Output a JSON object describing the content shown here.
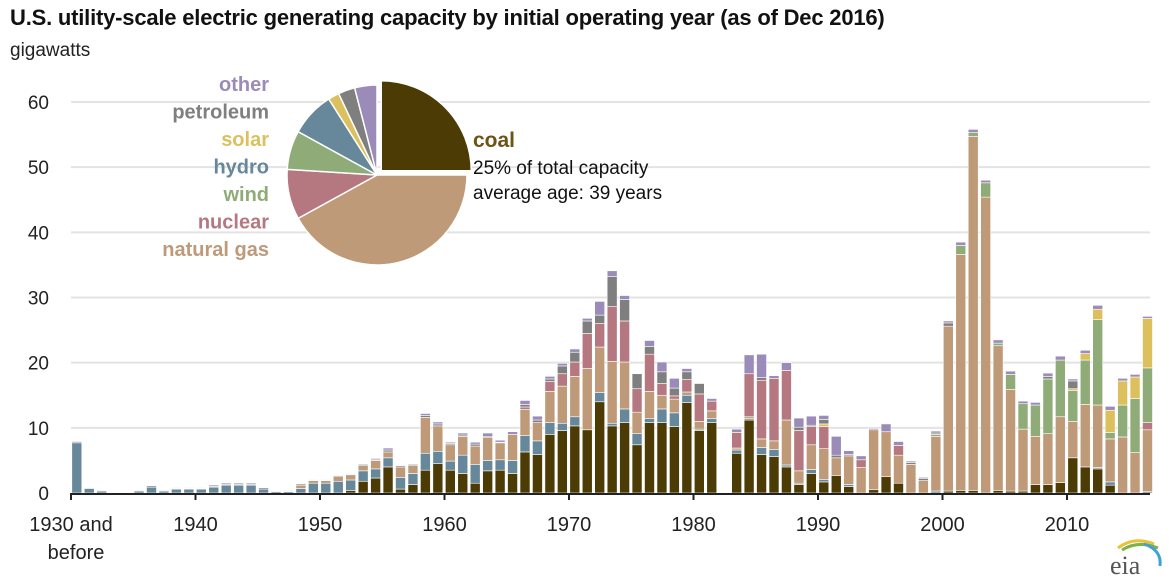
{
  "chart_data": {
    "type": "bar",
    "stacked": true,
    "title": "U.S. utility-scale electric generating capacity by initial operating year (as of Dec 2016)",
    "ylabel": "gigawatts",
    "xlabel": "",
    "ylim": [
      0,
      60
    ],
    "yticks": [
      0,
      10,
      20,
      30,
      40,
      50,
      60
    ],
    "xticks": [
      {
        "year": 1930,
        "label": "1930 and",
        "label2": "before"
      },
      {
        "year": 1940,
        "label": "1940"
      },
      {
        "year": 1950,
        "label": "1950"
      },
      {
        "year": 1960,
        "label": "1960"
      },
      {
        "year": 1970,
        "label": "1970"
      },
      {
        "year": 1980,
        "label": "1980"
      },
      {
        "year": 1990,
        "label": "1990"
      },
      {
        "year": 2000,
        "label": "2000"
      },
      {
        "year": 2010,
        "label": "2010"
      }
    ],
    "grid": true,
    "series_order": [
      "coal",
      "hydro",
      "natural gas",
      "nuclear",
      "wind",
      "solar",
      "petroleum",
      "other"
    ],
    "colors": {
      "coal": "#4d3b06",
      "hydro": "#66889a",
      "natural gas": "#bf9a78",
      "nuclear": "#b57880",
      "wind": "#8fac78",
      "solar": "#ddc05e",
      "petroleum": "#7f7f7f",
      "other": "#9b8bb8"
    },
    "years_start": 1930,
    "data": [
      [
        0,
        7.7,
        0,
        0,
        0,
        0,
        0,
        0.2
      ],
      [
        0,
        0.7,
        0,
        0,
        0,
        0,
        0.1,
        0
      ],
      [
        0,
        0.3,
        0,
        0,
        0,
        0,
        0.1,
        0
      ],
      [
        0,
        0,
        0,
        0,
        0,
        0,
        0,
        0
      ],
      [
        0,
        0,
        0,
        0,
        0,
        0,
        0,
        0
      ],
      [
        0,
        0.3,
        0,
        0,
        0,
        0,
        0.1,
        0
      ],
      [
        0,
        0.9,
        0,
        0,
        0,
        0,
        0.2,
        0
      ],
      [
        0,
        0.3,
        0,
        0,
        0,
        0,
        0.1,
        0
      ],
      [
        0,
        0.6,
        0.05,
        0,
        0,
        0,
        0.1,
        0.1
      ],
      [
        0,
        0.6,
        0.05,
        0,
        0,
        0,
        0.1,
        0.1
      ],
      [
        0,
        0.6,
        0.05,
        0,
        0,
        0,
        0.1,
        0.1
      ],
      [
        0,
        0.9,
        0.1,
        0,
        0,
        0,
        0.2,
        0
      ],
      [
        0,
        1.2,
        0.1,
        0,
        0,
        0,
        0.2,
        0
      ],
      [
        0,
        1.2,
        0.1,
        0,
        0,
        0,
        0.2,
        0
      ],
      [
        0,
        1.2,
        0.1,
        0,
        0,
        0,
        0.2,
        0
      ],
      [
        0,
        0.6,
        0,
        0,
        0,
        0,
        0.2,
        0
      ],
      [
        0,
        0.2,
        0,
        0,
        0,
        0,
        0.1,
        0
      ],
      [
        0,
        0.2,
        0,
        0,
        0,
        0,
        0.1,
        0.1
      ],
      [
        0,
        0.7,
        0.5,
        0,
        0,
        0,
        0.2,
        0.1
      ],
      [
        0,
        1.5,
        0.4,
        0,
        0,
        0,
        0.1,
        0.1
      ],
      [
        0,
        1.5,
        0.4,
        0,
        0,
        0,
        0.1,
        0.1
      ],
      [
        0,
        1.8,
        0.8,
        0,
        0,
        0,
        0.1,
        0.1
      ],
      [
        0.4,
        1.6,
        0.8,
        0,
        0,
        0,
        0.1,
        0.1
      ],
      [
        1.8,
        1.6,
        0.8,
        0,
        0,
        0,
        0.2,
        0.1
      ],
      [
        2.3,
        1.4,
        1.3,
        0,
        0,
        0,
        0.1,
        0.2
      ],
      [
        4.0,
        1.4,
        0.9,
        0,
        0,
        0,
        0.3,
        0.3
      ],
      [
        0.6,
        1.8,
        1.6,
        0,
        0,
        0,
        0.2,
        0.1
      ],
      [
        1.3,
        1.7,
        1.2,
        0,
        0,
        0,
        0.2,
        0.1
      ],
      [
        3.5,
        2.6,
        5.5,
        0,
        0,
        0,
        0.3,
        0.3
      ],
      [
        4.5,
        1.9,
        3.9,
        0,
        0,
        0,
        0.3,
        0.3
      ],
      [
        3.5,
        1.4,
        2.5,
        0,
        0,
        0,
        0.2,
        0.2
      ],
      [
        3.0,
        2.8,
        2.9,
        0,
        0,
        0,
        0.2,
        0.3
      ],
      [
        1.5,
        2.9,
        2.8,
        0,
        0,
        0,
        0.3,
        0.3
      ],
      [
        3.4,
        1.6,
        3.5,
        0,
        0,
        0,
        0.2,
        0.5
      ],
      [
        3.5,
        1.6,
        2.6,
        0,
        0,
        0,
        0.1,
        0.3
      ],
      [
        3.0,
        2.0,
        4.0,
        0,
        0,
        0,
        0,
        0.4
      ],
      [
        6.3,
        2.5,
        4.0,
        0.4,
        0,
        0,
        0.4,
        0.6
      ],
      [
        5.9,
        2.1,
        2.8,
        0,
        0,
        0,
        0.4,
        0.6
      ],
      [
        9.0,
        1.8,
        4.8,
        1.5,
        0,
        0,
        0.4,
        0.4
      ],
      [
        9.6,
        1.1,
        5.7,
        1.9,
        0,
        0,
        1.2,
        0.4
      ],
      [
        10.3,
        1.4,
        6.2,
        2.2,
        0,
        0,
        1.5,
        0.5
      ],
      [
        9.7,
        0,
        9.4,
        5.4,
        0,
        0,
        1.9,
        0.4
      ],
      [
        14.0,
        1.4,
        7.0,
        3.6,
        0,
        0,
        1.3,
        2.1
      ],
      [
        10.3,
        0.4,
        9.5,
        8.4,
        0,
        0,
        4.6,
        0.9
      ],
      [
        10.8,
        2.1,
        7.2,
        6.3,
        0,
        0,
        3.3,
        0.6
      ],
      [
        7.4,
        1.7,
        3.3,
        3.6,
        0,
        0,
        2.3,
        0
      ],
      [
        10.8,
        0.6,
        4.2,
        5.7,
        0,
        0,
        1.2,
        0.9
      ],
      [
        10.8,
        2.1,
        2.1,
        1.8,
        0,
        0,
        1.8,
        1.5
      ],
      [
        10.2,
        2.1,
        2.1,
        0.5,
        0,
        0,
        1.2,
        1.5
      ],
      [
        13.9,
        1.1,
        0.5,
        1.9,
        0,
        0,
        1.2,
        0.5
      ],
      [
        9.6,
        0.2,
        1.2,
        4.2,
        0,
        0,
        1.6,
        0
      ],
      [
        10.8,
        0.6,
        1.2,
        1.5,
        0,
        0,
        0,
        0.4
      ],
      [
        0,
        0,
        0,
        0,
        0,
        0,
        0,
        0
      ],
      [
        6.1,
        0.5,
        0.3,
        2.4,
        0,
        0,
        0,
        0.5
      ],
      [
        11.2,
        0.2,
        0.3,
        6.6,
        0,
        0,
        0,
        2.9
      ],
      [
        5.9,
        1.1,
        1.3,
        9.0,
        0,
        0,
        0.4,
        3.6
      ],
      [
        5.6,
        1.1,
        1.3,
        9.6,
        0,
        0,
        0,
        0.4
      ],
      [
        4.0,
        0.3,
        6.9,
        7.6,
        0,
        0,
        0,
        1.2
      ],
      [
        1.3,
        0.2,
        1.9,
        6.2,
        0,
        0,
        0.5,
        1.4
      ],
      [
        3.0,
        0.6,
        3.8,
        2.8,
        0,
        0,
        0.2,
        1.4
      ],
      [
        1.7,
        0.4,
        4.7,
        3.4,
        0,
        0.4,
        0.7,
        0.6
      ],
      [
        2.7,
        0,
        2.7,
        0,
        0,
        0,
        0.4,
        2.9
      ],
      [
        1.0,
        0.3,
        4.4,
        0,
        0,
        0,
        0.2,
        0.6
      ],
      [
        0,
        0,
        3.9,
        1.2,
        0,
        0,
        0,
        0.6
      ],
      [
        0.5,
        0,
        9.2,
        0,
        0,
        0,
        0,
        0.2
      ],
      [
        2.5,
        0,
        6.9,
        0,
        0,
        0,
        0,
        1.2
      ],
      [
        1.5,
        0,
        4.3,
        1.5,
        0,
        0,
        0,
        0.6
      ],
      [
        0,
        0,
        4.4,
        0,
        0,
        0,
        0.3,
        0.2
      ],
      [
        0,
        0,
        1.9,
        0,
        0,
        0,
        0.3,
        0.2
      ],
      [
        0,
        0.3,
        8.4,
        0,
        0.3,
        0,
        0.2,
        0.3
      ],
      [
        0.3,
        0,
        25.3,
        0,
        0,
        0,
        0.5,
        0.3
      ],
      [
        0.4,
        0,
        36.2,
        0,
        1.4,
        0,
        0,
        0.5
      ],
      [
        0.4,
        0,
        54.3,
        0,
        0.6,
        0,
        0,
        0.5
      ],
      [
        0,
        0,
        45.4,
        0,
        2.2,
        0,
        0,
        0.4
      ],
      [
        0.4,
        0,
        22.2,
        0,
        0.4,
        0,
        0,
        0.5
      ],
      [
        0.3,
        0,
        15.6,
        0,
        2.3,
        0,
        0,
        0.5
      ],
      [
        0.3,
        0,
        9.5,
        0,
        3.9,
        0,
        0,
        0.4
      ],
      [
        1.3,
        0,
        7.4,
        0,
        4.8,
        0,
        0,
        0.4
      ],
      [
        1.3,
        0,
        7.8,
        0,
        8.4,
        0,
        0.4,
        0.5
      ],
      [
        1.6,
        0,
        10.1,
        0,
        8.7,
        0,
        0,
        0.6
      ],
      [
        5.4,
        0,
        5.6,
        0,
        4.7,
        0.3,
        1.2,
        0.3
      ],
      [
        4.0,
        0,
        9.6,
        0,
        6.8,
        1.0,
        0,
        0.5
      ],
      [
        3.7,
        0.2,
        9.6,
        0,
        13.1,
        1.6,
        0,
        0.6
      ],
      [
        1.2,
        0.5,
        6.6,
        0,
        1.0,
        3.4,
        0,
        0.6
      ],
      [
        0,
        0,
        8.6,
        0,
        4.9,
        3.7,
        0,
        0.4
      ],
      [
        0,
        0,
        6.2,
        0,
        8.3,
        3.3,
        0,
        0.4
      ],
      [
        0,
        0.2,
        9.5,
        1.1,
        8.4,
        7.6,
        0,
        0.3
      ]
    ],
    "pie": {
      "title": "coal",
      "highlight_text1": "25% of total capacity",
      "highlight_text2": "average age: 39 years",
      "slices": [
        {
          "name": "coal",
          "value": 25,
          "exploded": true
        },
        {
          "name": "natural gas",
          "value": 42
        },
        {
          "name": "nuclear",
          "value": 9
        },
        {
          "name": "wind",
          "value": 7
        },
        {
          "name": "hydro",
          "value": 8
        },
        {
          "name": "solar",
          "value": 2
        },
        {
          "name": "petroleum",
          "value": 3
        },
        {
          "name": "other",
          "value": 4
        }
      ],
      "legend_order": [
        "other",
        "petroleum",
        "solar",
        "hydro",
        "wind",
        "nuclear",
        "natural gas"
      ]
    }
  },
  "source_logo": "eia"
}
